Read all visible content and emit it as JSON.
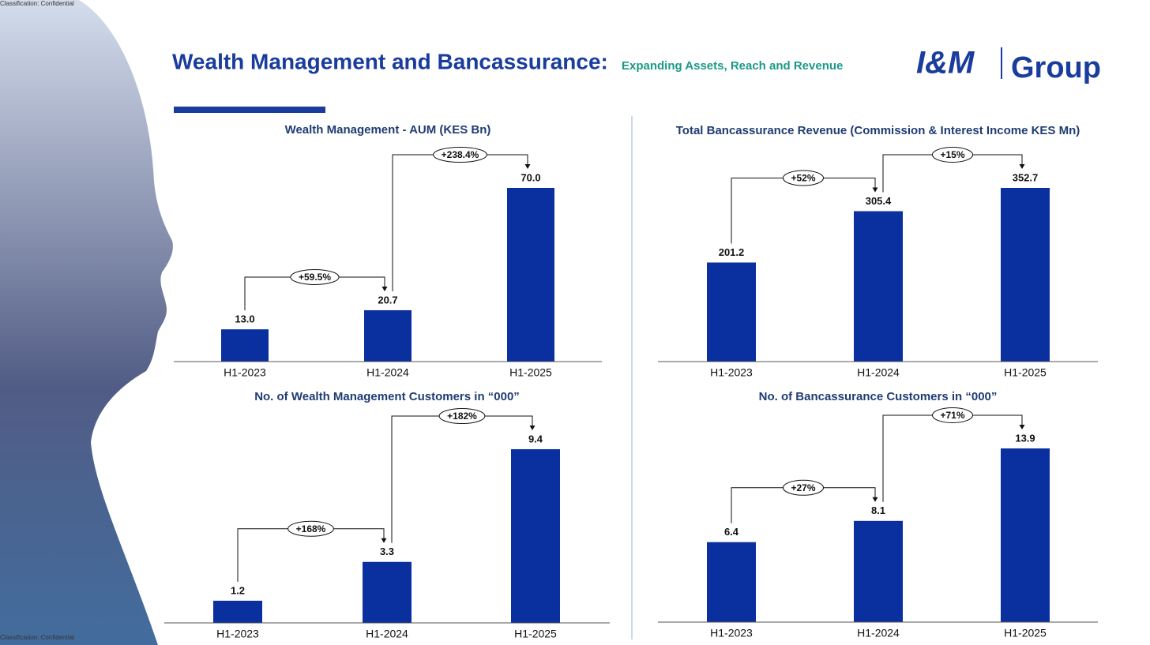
{
  "header": {
    "title": "Wealth Management and Bancassurance:",
    "subtitle": "Expanding Assets, Reach and Revenue",
    "logo_mark": "I&M",
    "logo_text": "Group",
    "classification_top": "Classification: Confidential",
    "classification_bottom": "Classification: Confidential"
  },
  "chart_data": [
    {
      "type": "bar",
      "title": "Wealth Management - AUM (KES Bn)",
      "categories": [
        "H1-2023",
        "H1-2024",
        "H1-2025"
      ],
      "values": [
        13.0,
        20.7,
        70.0
      ],
      "value_labels": [
        "13.0",
        "20.7",
        "70.0"
      ],
      "color": "#0a2f9e",
      "annotations": [
        "+59.5%",
        "+238.4%"
      ]
    },
    {
      "type": "bar",
      "title": "Total Bancassurance Revenue (Commission & Interest Income KES Mn)",
      "categories": [
        "H1-2023",
        "H1-2024",
        "H1-2025"
      ],
      "values": [
        201.2,
        305.4,
        352.7
      ],
      "value_labels": [
        "201.2",
        "305.4",
        "352.7"
      ],
      "color": "#0a2f9e",
      "annotations": [
        "+52%",
        "+15%"
      ]
    },
    {
      "type": "bar",
      "title": "No. of Wealth Management Customers in “000”",
      "categories": [
        "H1-2023",
        "H1-2024",
        "H1-2025"
      ],
      "values": [
        1.2,
        3.3,
        9.4
      ],
      "value_labels": [
        "1.2",
        "3.3",
        "9.4"
      ],
      "color": "#0a2f9e",
      "annotations": [
        "+168%",
        "+182%"
      ]
    },
    {
      "type": "bar",
      "title": "No. of Bancassurance Customers in “000”",
      "categories": [
        "H1-2023",
        "H1-2024",
        "H1-2025"
      ],
      "values": [
        6.4,
        8.1,
        13.9
      ],
      "value_labels": [
        "6.4",
        "8.1",
        "13.9"
      ],
      "color": "#0a2f9e",
      "annotations": [
        "+27%",
        "+71%"
      ]
    }
  ]
}
